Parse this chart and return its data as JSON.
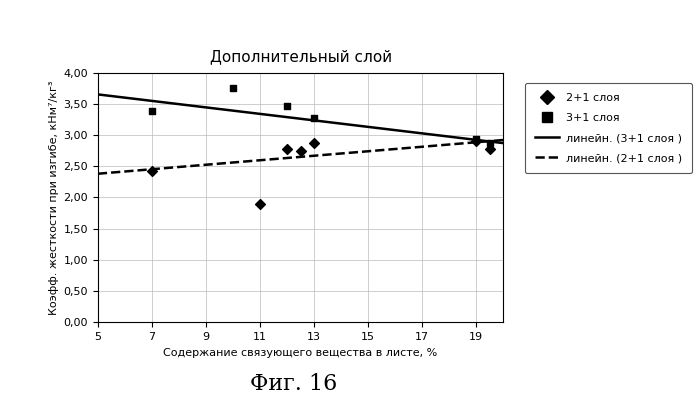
{
  "title": "Дополнительный слой",
  "xlabel": "Содержание связующего вещества в листе, %",
  "ylabel": "Коэфф. жесткости при изгибе, кНм⁷/кг³",
  "series_2plus1": {
    "x": [
      7.0,
      11.0,
      12.0,
      12.5,
      13.0,
      19.0,
      19.5
    ],
    "y": [
      2.42,
      1.9,
      2.78,
      2.75,
      2.88,
      2.9,
      2.78
    ]
  },
  "series_3plus1": {
    "x": [
      7.0,
      10.0,
      12.0,
      13.0,
      19.0,
      19.5
    ],
    "y": [
      3.38,
      3.75,
      3.47,
      3.27,
      2.93,
      2.88
    ]
  },
  "trend_2plus1": {
    "x": [
      5,
      20
    ],
    "y": [
      2.38,
      2.92
    ]
  },
  "trend_3plus1": {
    "x": [
      5,
      20
    ],
    "y": [
      3.65,
      2.87
    ]
  },
  "xlim": [
    5,
    20
  ],
  "ylim": [
    0.0,
    4.0
  ],
  "xticks": [
    5,
    7,
    9,
    11,
    13,
    15,
    17,
    19
  ],
  "yticks": [
    0.0,
    0.5,
    1.0,
    1.5,
    2.0,
    2.5,
    3.0,
    3.5,
    4.0
  ],
  "legend_labels": {
    "2plus1": "2+1 слоя",
    "3plus1": "3+1 слоя",
    "trend_3plus1": "линейн. (3+1 слоя )",
    "trend_2plus1": "линейн. (2+1 слоя )"
  },
  "fig_caption": "Фиг. 16",
  "marker_color": "#000000",
  "line_color": "#000000",
  "background_color": "#ffffff",
  "grid_color": "#bbbbbb"
}
